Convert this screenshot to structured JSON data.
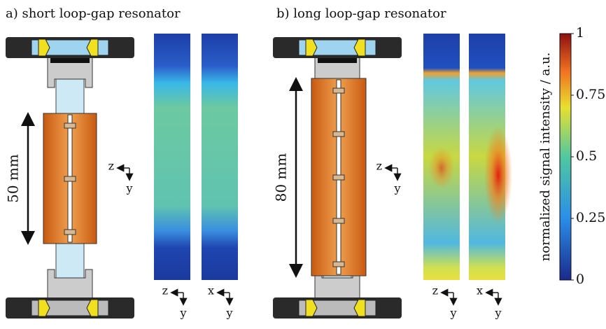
{
  "panels": [
    {
      "title": "a) short loop-gap resonator",
      "length_label": "50 mm",
      "coords": [
        {
          "h": "z",
          "v": "y"
        },
        {
          "h": "z",
          "v": "y"
        },
        {
          "h": "x",
          "v": "y"
        }
      ]
    },
    {
      "title": "b) long loop-gap resonator",
      "length_label": "80 mm",
      "coords": [
        {
          "h": "z",
          "v": "y"
        },
        {
          "h": "z",
          "v": "y"
        },
        {
          "h": "x",
          "v": "y"
        }
      ]
    }
  ],
  "colorbar": {
    "label": "normalized signal intensity / a.u.",
    "lim": [
      0,
      1
    ],
    "ticks": [
      0,
      0.25,
      0.5,
      0.75,
      1
    ]
  }
}
